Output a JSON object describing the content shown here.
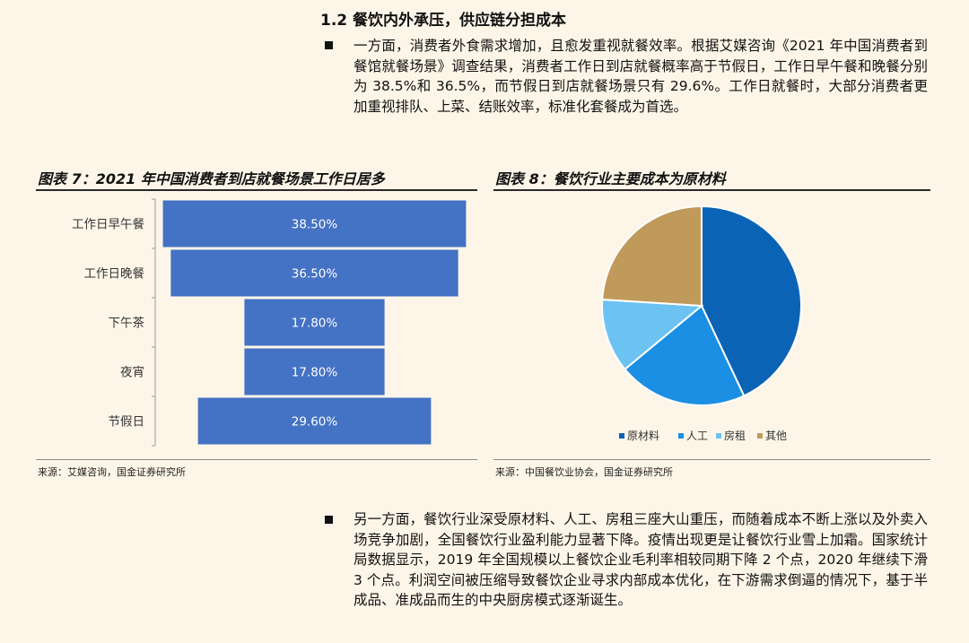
{
  "section": {
    "title": "1.2 餐饮内外承压，供应链分担成本"
  },
  "paragraphs": [
    "一方面，消费者外食需求增加，且愈发重视就餐效率。根据艾媒咨询《2021 年中国消费者到餐馆就餐场景》调查结果，消费者工作日到店就餐概率高于节假日，工作日早午餐和晚餐分别为 38.5%和 36.5%，而节假日到店就餐场景只有 29.6%。工作日就餐时，大部分消费者更加重视排队、上菜、结账效率，标准化套餐成为首选。",
    "另一方面，餐饮行业深受原材料、人工、房租三座大山重压，而随着成本不断上涨以及外卖入场竞争加剧，全国餐饮行业盈利能力显著下降。疫情出现更是让餐饮行业雪上加霜。国家统计局数据显示，2019 年全国规模以上餐饮企业毛利率相较同期下降 2 个点，2020 年继续下滑 3 个点。利润空间被压缩导致餐饮企业寻求内部成本优化，在下游需求倒逼的情况下，基于半成品、准成品而生的中央厨房模式逐渐诞生。"
  ],
  "figure7": {
    "title": "图表 7：2021 年中国消费者到店就餐场景工作日居多",
    "source": "来源：艾媒咨询，国金证券研究所"
  },
  "figure8": {
    "title": "图表 8：餐饮行业主要成本为原材料",
    "source": "来源：中国餐饮业协会，国金证券研究所"
  },
  "chart_data": [
    {
      "type": "bar",
      "orientation": "horizontal",
      "style": "funnel-centered",
      "categories": [
        "工作日早午餐",
        "工作日晚餐",
        "下午茶",
        "夜宵",
        "节假日"
      ],
      "values": [
        38.5,
        36.5,
        17.8,
        17.8,
        29.6
      ],
      "value_labels": [
        "38.50%",
        "36.50%",
        "17.80%",
        "17.80%",
        "29.60%"
      ],
      "color": "#4472c4",
      "xlim": [
        0,
        40
      ]
    },
    {
      "type": "pie",
      "legend_position": "bottom",
      "series": [
        {
          "name": "原材料",
          "color": "#0b63b5"
        },
        {
          "name": "人工",
          "color": "#1a8fe3"
        },
        {
          "name": "房租",
          "color": "#6cc3f2"
        },
        {
          "name": "其他",
          "color": "#c09a5b"
        }
      ],
      "values": [
        43,
        21,
        12,
        24
      ]
    }
  ]
}
